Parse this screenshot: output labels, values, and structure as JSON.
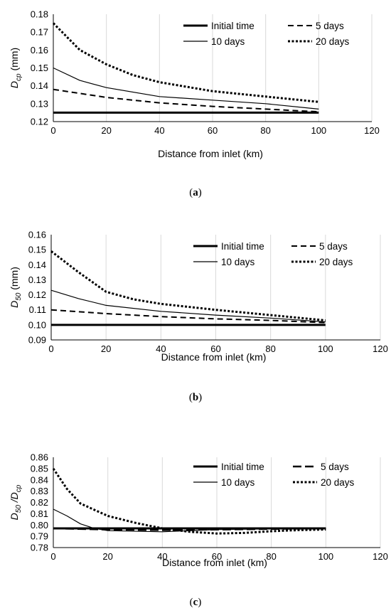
{
  "chart_data": [
    {
      "type": "line",
      "panel": "a",
      "caption_letter": "a",
      "ylabel_base": "D",
      "ylabel_sub": "cp",
      "ylabel_unit": " (mm)",
      "xlabel": "Distance from inlet (km)",
      "xlim": [
        0,
        120
      ],
      "xticks": [
        0,
        20,
        40,
        60,
        80,
        100,
        120
      ],
      "xtick_labels": [
        "0",
        "20",
        "40",
        "60",
        "80",
        "100",
        "120"
      ],
      "ylim": [
        0.12,
        0.18
      ],
      "yticks": [
        0.12,
        0.13,
        0.14,
        0.15,
        0.16,
        0.17,
        0.18
      ],
      "ytick_labels": [
        "0.12",
        "0.13",
        "0.14",
        "0.15",
        "0.16",
        "0.17",
        "0.18"
      ],
      "grid": "vertical",
      "legend_position": "top-right",
      "series": [
        {
          "name": "Initial time",
          "style": "thick",
          "x": [
            0,
            100
          ],
          "y": [
            0.125,
            0.125
          ]
        },
        {
          "name": "5 days",
          "style": "dashed",
          "x": [
            0,
            20,
            40,
            60,
            80,
            100
          ],
          "y": [
            0.138,
            0.1335,
            0.1305,
            0.1285,
            0.127,
            0.1255
          ]
        },
        {
          "name": "10 days",
          "style": "thin",
          "x": [
            0,
            10,
            20,
            40,
            60,
            80,
            100
          ],
          "y": [
            0.15,
            0.143,
            0.139,
            0.134,
            0.132,
            0.13,
            0.127
          ]
        },
        {
          "name": "20 days",
          "style": "dotted",
          "x": [
            0,
            10,
            20,
            30,
            40,
            60,
            80,
            100
          ],
          "y": [
            0.175,
            0.16,
            0.152,
            0.146,
            0.142,
            0.137,
            0.134,
            0.131
          ]
        }
      ]
    },
    {
      "type": "line",
      "panel": "b",
      "caption_letter": "b",
      "ylabel_base": "D",
      "ylabel_sub": "50",
      "ylabel_unit": " (mm)",
      "xlabel": "Distance from inlet (km)",
      "xlim": [
        0,
        120
      ],
      "xticks": [
        0,
        20,
        40,
        60,
        80,
        100,
        120
      ],
      "xtick_labels": [
        "0",
        "20",
        "40",
        "60",
        "80",
        "100",
        "120"
      ],
      "ylim": [
        0.09,
        0.16
      ],
      "yticks": [
        0.09,
        0.1,
        0.11,
        0.12,
        0.13,
        0.14,
        0.15,
        0.16
      ],
      "ytick_labels": [
        "0.09",
        "0.10",
        "0.11",
        "0.12",
        "0.13",
        "0.14",
        "0.15",
        "0.16"
      ],
      "grid": "vertical",
      "legend_position": "top-right",
      "series": [
        {
          "name": "Initial time",
          "style": "thick",
          "x": [
            0,
            100
          ],
          "y": [
            0.1,
            0.1
          ]
        },
        {
          "name": "5 days",
          "style": "dashed",
          "x": [
            0,
            20,
            40,
            60,
            80,
            100
          ],
          "y": [
            0.11,
            0.1075,
            0.1055,
            0.104,
            0.103,
            0.1015
          ]
        },
        {
          "name": "10 days",
          "style": "thin",
          "x": [
            0,
            10,
            20,
            40,
            60,
            80,
            100
          ],
          "y": [
            0.123,
            0.1175,
            0.113,
            0.109,
            0.1065,
            0.1045,
            0.102
          ]
        },
        {
          "name": "20 days",
          "style": "dotted",
          "x": [
            0,
            10,
            20,
            30,
            40,
            60,
            80,
            100
          ],
          "y": [
            0.149,
            0.135,
            0.122,
            0.117,
            0.114,
            0.11,
            0.1065,
            0.103
          ]
        }
      ]
    },
    {
      "type": "line",
      "panel": "c",
      "caption_letter": "c",
      "ylabel_base": "D",
      "ylabel_sub": "50",
      "ylabel_mid": " /D",
      "ylabel_sub2": "cp",
      "ylabel_unit": "",
      "xlabel": "Distance from inlet (km)",
      "xlim": [
        0,
        120
      ],
      "xticks": [
        0,
        20,
        40,
        60,
        80,
        100,
        120
      ],
      "xtick_labels": [
        "0",
        "20",
        "40",
        "60",
        "80",
        "100",
        "120"
      ],
      "ylim": [
        0.78,
        0.86
      ],
      "yticks": [
        0.78,
        0.79,
        0.8,
        0.81,
        0.82,
        0.83,
        0.84,
        0.85,
        0.86
      ],
      "ytick_labels": [
        "0.78",
        "0.79",
        "0.80",
        "0.81",
        "0.82",
        "0.83",
        "0.84",
        "0.85",
        "0.86"
      ],
      "grid": "vertical",
      "legend_position": "top-right",
      "series": [
        {
          "name": "Initial time",
          "style": "thick",
          "x": [
            0,
            100
          ],
          "y": [
            0.797,
            0.797
          ]
        },
        {
          "name": "5 days",
          "style": "longdash",
          "x": [
            0,
            20,
            40,
            60,
            80,
            100
          ],
          "y": [
            0.797,
            0.796,
            0.7955,
            0.796,
            0.7965,
            0.797
          ]
        },
        {
          "name": "10 days",
          "style": "thin",
          "x": [
            0,
            5,
            10,
            15,
            20,
            40,
            60,
            80,
            100
          ],
          "y": [
            0.814,
            0.808,
            0.801,
            0.797,
            0.795,
            0.794,
            0.796,
            0.7965,
            0.797
          ]
        },
        {
          "name": "20 days",
          "style": "dotted",
          "x": [
            0,
            5,
            10,
            20,
            30,
            40,
            50,
            60,
            70,
            80,
            90,
            100
          ],
          "y": [
            0.85,
            0.832,
            0.819,
            0.808,
            0.802,
            0.797,
            0.794,
            0.7925,
            0.793,
            0.7945,
            0.7955,
            0.796
          ]
        }
      ]
    }
  ]
}
